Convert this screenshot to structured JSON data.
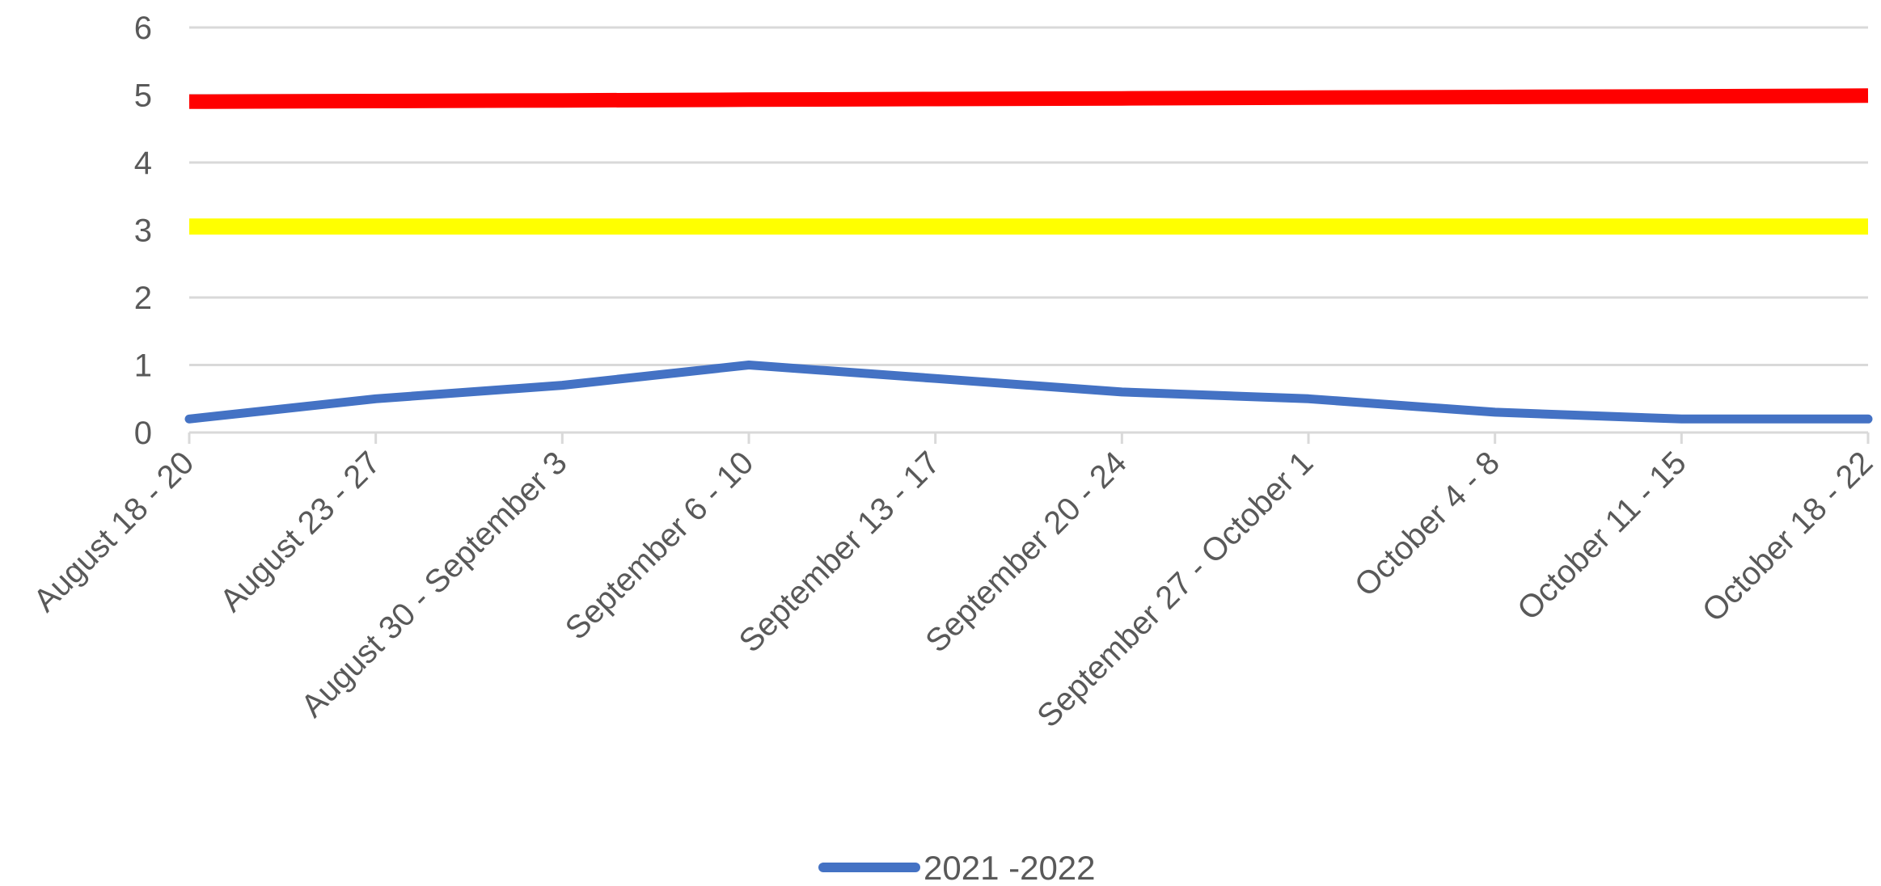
{
  "chart_data": {
    "type": "line",
    "title": "",
    "xlabel": "",
    "ylabel": "",
    "categories": [
      "August 18 - 20",
      "August 23 - 27",
      "August 30 - September 3",
      "September 6 - 10",
      "September 13 - 17",
      "September 20 - 24",
      "September 27 - October 1",
      "October 4 - 8",
      "October 11 - 15",
      "October 18 - 22"
    ],
    "yticks": [
      "0",
      "1",
      "2",
      "3",
      "4",
      "5",
      "6"
    ],
    "ylim": [
      0,
      6
    ],
    "grid": true,
    "legend_position": "bottom",
    "series": [
      {
        "name": "2021 -2022",
        "color": "#4472C4",
        "values": [
          0.2,
          0.5,
          0.7,
          1.0,
          0.8,
          0.6,
          0.5,
          0.3,
          0.2,
          0.2
        ],
        "in_legend": true
      }
    ],
    "reference_lines": [
      {
        "color": "#FF0000",
        "values": [
          4.9,
          4.91,
          4.92,
          4.93,
          4.94,
          4.95,
          4.96,
          4.97,
          4.98,
          4.99
        ],
        "in_legend": false
      },
      {
        "color": "#FFFF00",
        "values": [
          3.05,
          3.05,
          3.05,
          3.05,
          3.05,
          3.05,
          3.05,
          3.05,
          3.05,
          3.05
        ],
        "in_legend": false
      }
    ],
    "colors": {
      "gridline": "#D9D9D9",
      "tick_text": "#595959"
    }
  }
}
